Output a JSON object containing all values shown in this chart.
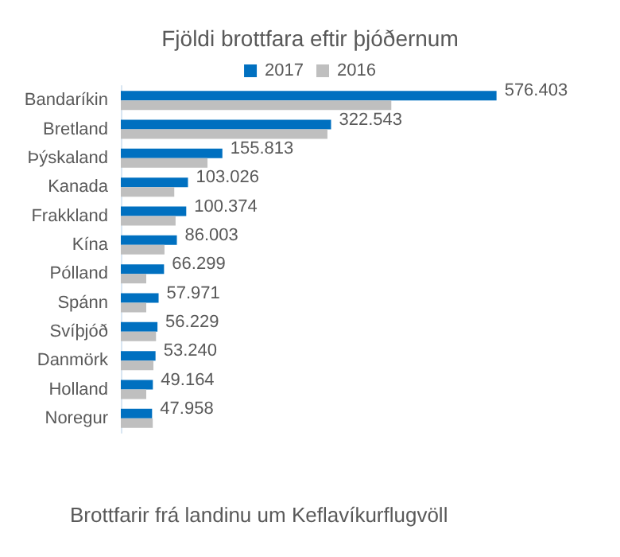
{
  "chart_data": {
    "type": "bar",
    "orientation": "horizontal",
    "title": "Fjöldi brottfara eftir þjóðernum",
    "categories": [
      "Bandaríkin",
      "Bretland",
      "Þýskaland",
      "Kanada",
      "Frakkland",
      "Kína",
      "Pólland",
      "Spánn",
      "Svíþjóð",
      "Danmörk",
      "Holland",
      "Noregur"
    ],
    "series": [
      {
        "name": "2017",
        "color": "#0070c0",
        "values": [
          576403,
          322543,
          155813,
          103026,
          100374,
          86003,
          66299,
          57971,
          56229,
          53240,
          49164,
          47958
        ],
        "value_labels": [
          "576.403",
          "322.543",
          "155.813",
          "103.026",
          "100.374",
          "86.003",
          "66.299",
          "57.971",
          "56.229",
          "53.240",
          "49.164",
          "47.958"
        ]
      },
      {
        "name": "2016",
        "color": "#bfbfbf",
        "values": [
          415000,
          317000,
          133000,
          82000,
          84000,
          67000,
          39000,
          39000,
          54000,
          50000,
          39000,
          49000
        ]
      }
    ],
    "legend": "top",
    "grid": false,
    "annotations": [
      "Brottfarir frá landinu um Keflavíkurflugvöll"
    ]
  }
}
